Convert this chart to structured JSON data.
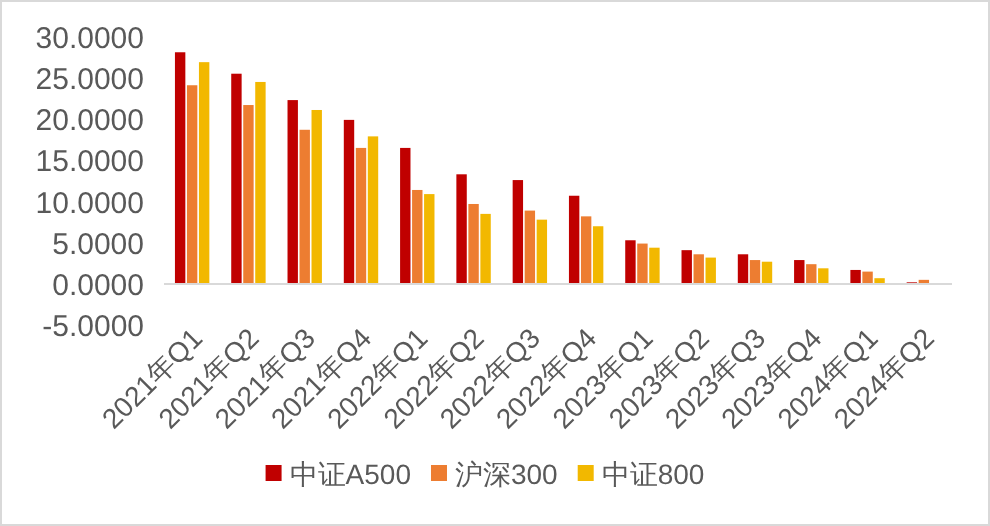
{
  "chart_data": {
    "type": "bar",
    "categories": [
      "2021年Q1",
      "2021年Q2",
      "2021年Q3",
      "2021年Q4",
      "2022年Q1",
      "2022年Q2",
      "2022年Q3",
      "2022年Q4",
      "2023年Q1",
      "2023年Q2",
      "2023年Q3",
      "2023年Q4",
      "2024年Q1",
      "2024年Q2"
    ],
    "series": [
      {
        "name": "中证A500",
        "color": "#c00000",
        "values": [
          28.1,
          25.5,
          22.3,
          19.9,
          16.5,
          13.3,
          12.6,
          10.7,
          5.3,
          4.1,
          3.6,
          2.9,
          1.7,
          0.2
        ]
      },
      {
        "name": "沪深300",
        "color": "#ed7d31",
        "values": [
          24.1,
          21.7,
          18.7,
          16.5,
          11.4,
          9.7,
          8.9,
          8.2,
          4.9,
          3.6,
          2.9,
          2.4,
          1.5,
          0.5
        ]
      },
      {
        "name": "中证800",
        "color": "#f2b800",
        "values": [
          26.9,
          24.5,
          21.1,
          17.9,
          10.9,
          8.5,
          7.8,
          7.0,
          4.4,
          3.2,
          2.7,
          1.9,
          0.7,
          null
        ]
      }
    ],
    "ylim": [
      -5,
      30
    ],
    "yticks": [
      {
        "value": -5,
        "label": "-5.0000"
      },
      {
        "value": 0,
        "label": "0.0000"
      },
      {
        "value": 5,
        "label": "5.0000"
      },
      {
        "value": 10,
        "label": "10.0000"
      },
      {
        "value": 15,
        "label": "15.0000"
      },
      {
        "value": 20,
        "label": "20.0000"
      },
      {
        "value": 25,
        "label": "25.0000"
      },
      {
        "value": 30,
        "label": "30.0000"
      }
    ],
    "grid": false,
    "legend": "bottom"
  }
}
